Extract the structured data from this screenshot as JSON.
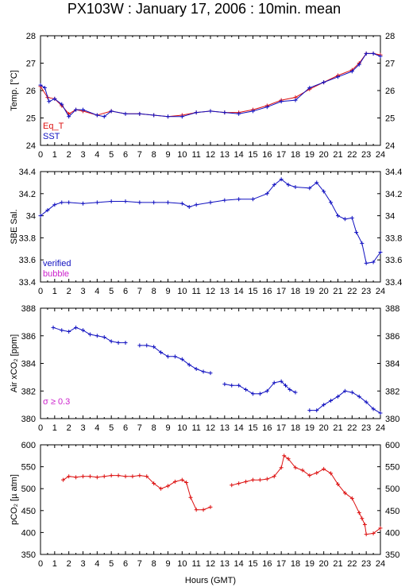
{
  "title": "PX103W : January 17, 2006 : 10min. mean",
  "colors": {
    "blue": "#1010c0",
    "red": "#dd1111",
    "magenta": "#cc22cc",
    "purple": "#8a2fa0"
  },
  "chart_data": [
    {
      "type": "line",
      "ylabel": "Temp. [°C]",
      "ylim": [
        24,
        28
      ],
      "yticks": [
        "24",
        "25",
        "26",
        "27",
        "28"
      ],
      "xlim": [
        0,
        24
      ],
      "xticks": [
        "0",
        "1",
        "2",
        "3",
        "4",
        "5",
        "6",
        "7",
        "8",
        "9",
        "10",
        "11",
        "12",
        "13",
        "14",
        "15",
        "16",
        "17",
        "18",
        "19",
        "20",
        "21",
        "22",
        "23",
        "24"
      ],
      "legend": [
        "Eq_T",
        "SST"
      ],
      "series": [
        {
          "name": "Eq_T",
          "color": "#dd1111",
          "x": [
            0,
            0.5,
            1,
            1.5,
            2,
            2.5,
            3,
            4,
            5,
            6,
            7,
            8,
            9,
            10,
            11,
            12,
            13,
            14,
            15,
            16,
            17,
            18,
            19,
            20,
            21,
            22,
            22.5,
            23,
            23.5,
            24
          ],
          "y": [
            26.15,
            25.75,
            25.7,
            25.45,
            25.15,
            25.3,
            25.25,
            25.1,
            25.25,
            25.15,
            25.15,
            25.1,
            25.05,
            25.1,
            25.2,
            25.25,
            25.2,
            25.2,
            25.3,
            25.45,
            25.65,
            25.75,
            26.05,
            26.3,
            26.55,
            26.75,
            27.0,
            27.35,
            27.35,
            27.3
          ]
        },
        {
          "name": "SST",
          "color": "#1010c0",
          "x": [
            0,
            0.3,
            0.6,
            1,
            1.5,
            2,
            2.5,
            3,
            4,
            4.5,
            5,
            6,
            7,
            8,
            9,
            10,
            11,
            12,
            13,
            14,
            15,
            16,
            17,
            18,
            19,
            20,
            21,
            22,
            22.5,
            23,
            23.5,
            24
          ],
          "y": [
            26.2,
            26.1,
            25.6,
            25.7,
            25.5,
            25.05,
            25.3,
            25.3,
            25.1,
            25.05,
            25.25,
            25.15,
            25.15,
            25.1,
            25.05,
            25.05,
            25.2,
            25.25,
            25.2,
            25.15,
            25.25,
            25.4,
            25.6,
            25.65,
            26.1,
            26.3,
            26.5,
            26.7,
            26.95,
            27.35,
            27.35,
            27.25
          ]
        }
      ]
    },
    {
      "type": "line",
      "ylabel": "SBE Sal.",
      "ylim": [
        33.4,
        34.4
      ],
      "yticks": [
        "33.4",
        "33.6",
        "33.8",
        "34",
        "34.2",
        "34.4"
      ],
      "xlim": [
        0,
        24
      ],
      "legend": [
        "verified",
        "bubble"
      ],
      "series": [
        {
          "name": "verified",
          "color": "#1010c0",
          "x": [
            0,
            0.5,
            1,
            1.5,
            2,
            3,
            4,
            5,
            6,
            7,
            8,
            9,
            10,
            10.5,
            11,
            12,
            13,
            14,
            15,
            16,
            16.5,
            17,
            17.5,
            18,
            19,
            19.5,
            20,
            20.5,
            21,
            21.5,
            22,
            22.3,
            22.7,
            23,
            23.5,
            24
          ],
          "y": [
            34.0,
            34.05,
            34.1,
            34.12,
            34.12,
            34.11,
            34.12,
            34.13,
            34.13,
            34.12,
            34.12,
            34.12,
            34.11,
            34.08,
            34.1,
            34.12,
            34.14,
            34.15,
            34.15,
            34.2,
            34.28,
            34.33,
            34.28,
            34.26,
            34.25,
            34.3,
            34.22,
            34.12,
            34.0,
            33.97,
            33.98,
            33.85,
            33.75,
            33.57,
            33.58,
            33.67
          ]
        }
      ]
    },
    {
      "type": "line",
      "ylabel": "Air xCO₂ [ppm]",
      "ylim": [
        380,
        388
      ],
      "yticks": [
        "380",
        "382",
        "384",
        "386",
        "388"
      ],
      "xlim": [
        0,
        24
      ],
      "annotation": "σ ≥ 0.3",
      "series": [
        {
          "name": "",
          "color": "#1010c0",
          "segments": [
            {
              "x": [
                0.9,
                1.5,
                2,
                2.5,
                3,
                3.5,
                4,
                4.5,
                5,
                5.5,
                6
              ],
              "y": [
                386.6,
                386.4,
                386.3,
                386.6,
                386.4,
                386.1,
                386.0,
                385.9,
                385.6,
                385.5,
                385.5
              ]
            },
            {
              "x": [
                7,
                7.5,
                8,
                8.5,
                9,
                9.5,
                10,
                10.5,
                11,
                11.5,
                12
              ],
              "y": [
                385.3,
                385.3,
                385.2,
                384.8,
                384.5,
                384.5,
                384.3,
                383.9,
                383.6,
                383.4,
                383.3
              ]
            },
            {
              "x": [
                13,
                13.5,
                14,
                14.5,
                15,
                15.5,
                16,
                16.5,
                17,
                17.3,
                17.6,
                18
              ],
              "y": [
                382.5,
                382.4,
                382.4,
                382.1,
                381.8,
                381.8,
                382.0,
                382.6,
                382.7,
                382.4,
                382.1,
                381.9
              ]
            },
            {
              "x": [
                19,
                19.5,
                20,
                20.5,
                21,
                21.5,
                22,
                22.5,
                23,
                23.5,
                24
              ],
              "y": [
                380.6,
                380.6,
                381.0,
                381.3,
                381.6,
                382.0,
                381.9,
                381.6,
                381.2,
                380.7,
                380.4
              ]
            }
          ]
        }
      ]
    },
    {
      "type": "line",
      "ylabel": "pCO₂ [µ atm]",
      "ylim": [
        350,
        600
      ],
      "yticks": [
        "350",
        "400",
        "450",
        "500",
        "550",
        "600"
      ],
      "xlim": [
        0,
        24
      ],
      "xlabel": "Hours (GMT)",
      "series": [
        {
          "name": "",
          "color": "#dd1111",
          "segments": [
            {
              "x": [
                1.6,
                2,
                2.5,
                3,
                3.5,
                4,
                4.5,
                5,
                5.5,
                6,
                6.5,
                7,
                7.5,
                8,
                8.5,
                9,
                9.5,
                10,
                10.3,
                10.6,
                11,
                11.5,
                12
              ],
              "y": [
                520,
                528,
                526,
                528,
                528,
                526,
                528,
                530,
                530,
                528,
                528,
                530,
                528,
                512,
                500,
                506,
                516,
                520,
                514,
                480,
                452,
                452,
                458
              ]
            },
            {
              "x": [
                13.5,
                14,
                14.5,
                15,
                15.5,
                16,
                16.5,
                17,
                17.2,
                17.5,
                18,
                18.5,
                19,
                19.5,
                20,
                20.5,
                21,
                21.5,
                22,
                22.5,
                22.7,
                22.9,
                23,
                23.5,
                24
              ],
              "y": [
                508,
                512,
                516,
                520,
                520,
                522,
                528,
                548,
                575,
                568,
                548,
                542,
                530,
                536,
                545,
                535,
                510,
                490,
                478,
                445,
                432,
                418,
                396,
                398,
                410
              ]
            }
          ]
        }
      ]
    }
  ]
}
